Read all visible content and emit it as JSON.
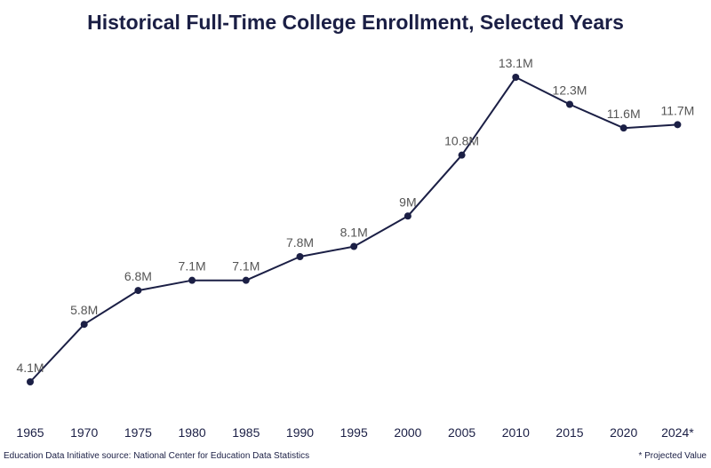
{
  "chart_data": {
    "type": "line",
    "title": "Historical Full-Time College Enrollment, Selected Years",
    "xlabel": "",
    "ylabel": "",
    "categories": [
      "1965",
      "1970",
      "1975",
      "1980",
      "1985",
      "1990",
      "1995",
      "2000",
      "2005",
      "2010",
      "2015",
      "2020",
      "2024*"
    ],
    "series": [
      {
        "values": [
          4.1,
          5.8,
          6.8,
          7.1,
          7.1,
          7.8,
          8.1,
          9.0,
          10.8,
          13.1,
          12.3,
          11.6,
          11.7
        ],
        "labels": [
          "4.1M",
          "5.8M",
          "6.8M",
          "7.1M",
          "7.1M",
          "7.8M",
          "8.1M",
          "9M",
          "10.8M",
          "13.1M",
          "12.3M",
          "11.6M",
          "11.7M"
        ]
      }
    ],
    "ylim": [
      3.2,
      14.2
    ],
    "grid": false,
    "legend": "none",
    "line_color": "#1b1f45",
    "marker_color": "#1b1f45",
    "label_color": "#555555",
    "tick_color": "#1b1f45"
  },
  "footer": {
    "source": "Education Data Initiative source: National Center for Education Data Statistics",
    "note": "* Projected Value"
  }
}
